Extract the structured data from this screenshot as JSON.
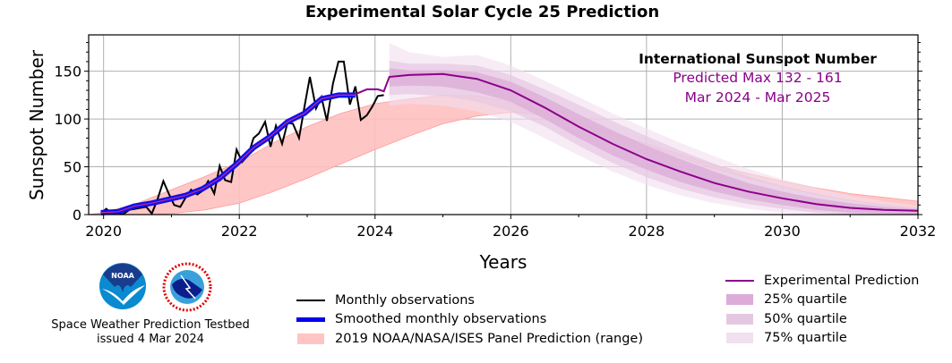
{
  "chart_data": {
    "type": "line",
    "title": "Experimental Solar Cycle 25 Prediction",
    "xlabel": "Years",
    "ylabel": "Sunspot Number",
    "xlim": [
      2019.78,
      2032.0
    ],
    "ylim": [
      0,
      188
    ],
    "grid": true,
    "x_ticks": [
      2020,
      2022,
      2024,
      2026,
      2028,
      2030,
      2032
    ],
    "x_tick_labels": [
      "2020",
      "2022",
      "2024",
      "2026",
      "2028",
      "2030",
      "2032"
    ],
    "y_ticks": [
      0,
      50,
      100,
      150
    ],
    "y_tick_labels": [
      "0",
      "50",
      "100",
      "150"
    ],
    "annotation": {
      "heading": "International Sunspot Number",
      "line1": "Predicted Max 132 - 161",
      "line2": "Mar 2024 - Mar 2025"
    },
    "series": [
      {
        "name": "Monthly observations",
        "kind": "line",
        "color": "#000000",
        "x": [
          2019.96,
          2020.04,
          2020.13,
          2020.21,
          2020.29,
          2020.38,
          2020.46,
          2020.54,
          2020.63,
          2020.71,
          2020.79,
          2020.88,
          2020.96,
          2021.04,
          2021.13,
          2021.21,
          2021.29,
          2021.38,
          2021.46,
          2021.54,
          2021.63,
          2021.71,
          2021.79,
          2021.88,
          2021.96,
          2022.04,
          2022.13,
          2022.21,
          2022.29,
          2022.38,
          2022.46,
          2022.54,
          2022.63,
          2022.71,
          2022.79,
          2022.88,
          2022.96,
          2023.04,
          2023.13,
          2023.21,
          2023.29,
          2023.38,
          2023.46,
          2023.54,
          2023.63,
          2023.71,
          2023.79,
          2023.88,
          2023.96,
          2024.04,
          2024.13
        ],
        "y": [
          1.5,
          6,
          0.5,
          0.5,
          0.5,
          5,
          6,
          7,
          8,
          1,
          15,
          35,
          22,
          10,
          8,
          18,
          26,
          21,
          25,
          35,
          22,
          51,
          36,
          34,
          68,
          55,
          62,
          80,
          85,
          97,
          71,
          93,
          74,
          96,
          95,
          80,
          113,
          144,
          111,
          123,
          98,
          137,
          160,
          160,
          115,
          134,
          99,
          104,
          113,
          124,
          125
        ]
      },
      {
        "name": "Smoothed monthly observations",
        "kind": "line",
        "color": "#0000ee",
        "x": [
          2019.96,
          2020.21,
          2020.46,
          2020.71,
          2020.96,
          2021.21,
          2021.46,
          2021.71,
          2021.96,
          2022.21,
          2022.46,
          2022.71,
          2022.96,
          2023.21,
          2023.46,
          2023.71
        ],
        "y": [
          2,
          3,
          9,
          12,
          16,
          20,
          27,
          38,
          53,
          70,
          82,
          97,
          106,
          121,
          125,
          125
        ]
      },
      {
        "name": "Experimental Prediction",
        "kind": "line",
        "color": "#8b008b",
        "x": [
          2023.71,
          2023.88,
          2024.04,
          2024.13,
          2024.21,
          2024.5,
          2025.0,
          2025.5,
          2026.0,
          2026.5,
          2027.0,
          2027.5,
          2028.0,
          2028.5,
          2029.0,
          2029.5,
          2030.0,
          2030.5,
          2031.0,
          2031.5,
          2032.0
        ],
        "y": [
          126,
          131,
          131,
          129,
          144,
          146,
          147,
          142,
          130,
          112,
          92,
          74,
          58,
          45,
          33,
          24,
          17,
          11,
          7,
          5,
          4
        ]
      },
      {
        "name": "25% quartile",
        "kind": "band",
        "color": "#dcabd7",
        "x": [
          2024.21,
          2024.5,
          2025.0,
          2025.5,
          2026.0,
          2026.5,
          2027.0,
          2027.5,
          2028.0,
          2028.5,
          2029.0,
          2029.5,
          2030.0,
          2030.5,
          2031.0,
          2031.5,
          2032.0
        ],
        "low": [
          134,
          135,
          134,
          128,
          118,
          100,
          80,
          62,
          47,
          34,
          24,
          16,
          10,
          5,
          2,
          1,
          0
        ],
        "high": [
          153,
          151,
          151,
          149,
          139,
          123,
          105,
          88,
          72,
          58,
          45,
          33,
          24,
          17,
          12,
          8,
          6
        ]
      },
      {
        "name": "50% quartile",
        "kind": "band",
        "color": "#e6c7e2",
        "x": [
          2024.21,
          2024.5,
          2025.0,
          2025.5,
          2026.0,
          2026.5,
          2027.0,
          2027.5,
          2028.0,
          2028.5,
          2029.0,
          2029.5,
          2030.0,
          2030.5,
          2031.0,
          2031.5,
          2032.0
        ],
        "low": [
          125,
          126,
          124,
          118,
          108,
          92,
          72,
          54,
          39,
          27,
          18,
          11,
          6,
          2,
          0,
          0,
          0
        ],
        "high": [
          161,
          158,
          158,
          156,
          146,
          131,
          115,
          98,
          82,
          67,
          53,
          40,
          30,
          22,
          15,
          10,
          7
        ]
      },
      {
        "name": "75% quartile",
        "kind": "band",
        "color": "#f1e0ef",
        "x": [
          2024.21,
          2024.5,
          2025.0,
          2025.5,
          2026.0,
          2026.5,
          2027.0,
          2027.5,
          2028.0,
          2028.5,
          2029.0,
          2029.5,
          2030.0,
          2030.5,
          2031.0,
          2031.5,
          2032.0
        ],
        "low": [
          114,
          116,
          114,
          108,
          97,
          80,
          62,
          45,
          31,
          20,
          12,
          6,
          2,
          0,
          0,
          0,
          0
        ],
        "high": [
          180,
          170,
          165,
          167,
          156,
          140,
          123,
          106,
          90,
          75,
          61,
          48,
          37,
          28,
          20,
          14,
          9
        ]
      },
      {
        "name": "2019 NOAA/NASA/ISES Panel Prediction (range)",
        "kind": "band",
        "color": "#ffbfbf",
        "x": [
          2019.78,
          2020.0,
          2020.5,
          2021.0,
          2021.5,
          2022.0,
          2022.5,
          2023.0,
          2023.5,
          2024.0,
          2024.5,
          2025.0,
          2025.5,
          2026.0,
          2026.5,
          2027.0,
          2027.5,
          2028.0,
          2028.5,
          2029.0,
          2029.5,
          2030.0,
          2030.5,
          2031.0,
          2031.5,
          2032.0
        ],
        "low": [
          0,
          0,
          0,
          1,
          5,
          12,
          24,
          38,
          53,
          68,
          82,
          95,
          103,
          107,
          104,
          96,
          84,
          72,
          60,
          48,
          38,
          29,
          21,
          15,
          10,
          7
        ],
        "high": [
          0,
          2,
          12,
          26,
          40,
          55,
          75,
          92,
          106,
          116,
          121,
          125,
          124,
          118,
          108,
          96,
          85,
          74,
          63,
          52,
          43,
          35,
          28,
          22,
          18,
          14
        ]
      }
    ],
    "legend_left": [
      {
        "label": "Monthly observations",
        "style": "line",
        "color": "#000000"
      },
      {
        "label": "Smoothed monthly observations",
        "style": "thick",
        "color": "#0000ee"
      },
      {
        "label": "2019 NOAA/NASA/ISES Panel Prediction (range)",
        "style": "box",
        "color": "#ffc4c4"
      }
    ],
    "legend_right": [
      {
        "label": "Experimental Prediction",
        "style": "line",
        "color": "#8b008b"
      },
      {
        "label": "25% quartile",
        "style": "box",
        "color": "#dcabd7"
      },
      {
        "label": "50% quartile",
        "style": "box",
        "color": "#e6c7e2"
      },
      {
        "label": "75% quartile",
        "style": "box",
        "color": "#f1e0ef"
      }
    ]
  },
  "credit": {
    "line1": "Space Weather Prediction Testbed",
    "line2": "issued 4 Mar 2024",
    "logo_left": "NOAA",
    "logo_right": "NATIONAL WEATHER SERVICE"
  }
}
